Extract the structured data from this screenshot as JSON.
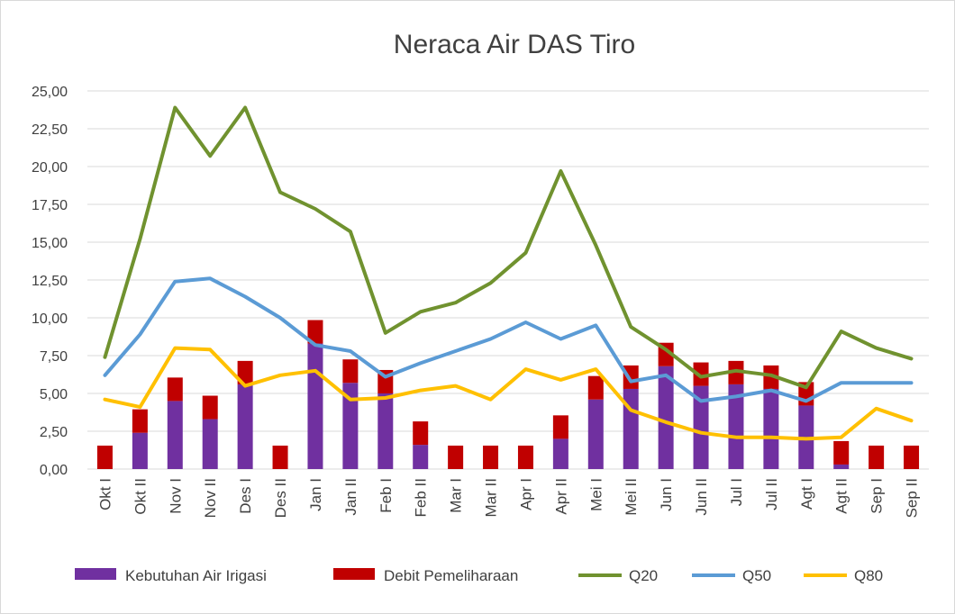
{
  "chart_data": {
    "type": "bar",
    "title": "Neraca Air DAS Tiro",
    "xlabel": "",
    "ylabel": "",
    "ylim": [
      0,
      25
    ],
    "yticks": [
      "0,00",
      "2,50",
      "5,00",
      "7,50",
      "10,00",
      "12,50",
      "15,00",
      "17,50",
      "20,00",
      "22,50",
      "25,00"
    ],
    "grid": true,
    "legend_position": "bottom",
    "categories": [
      "Okt I",
      "Okt II",
      "Nov I",
      "Nov II",
      "Des I",
      "Des II",
      "Jan I",
      "Jan II",
      "Feb I",
      "Feb II",
      "Mar I",
      "Mar II",
      "Apr I",
      "Apr II",
      "Mei I",
      "Mei II",
      "Jun I",
      "Jun II",
      "Jul I",
      "Jul II",
      "Agt I",
      "Agt II",
      "Sep I",
      "Sep II"
    ],
    "stacked_bars": [
      {
        "name": "Kebutuhan Air Irigasi",
        "color": "#7030a0",
        "values": [
          0,
          2.4,
          4.5,
          3.3,
          5.6,
          0,
          8.3,
          5.7,
          5.0,
          1.6,
          0,
          0,
          0,
          2.0,
          4.6,
          5.3,
          6.8,
          5.5,
          5.6,
          5.3,
          4.2,
          0.3,
          0,
          0
        ]
      },
      {
        "name": "Debit Pemeliharaan",
        "color": "#c00000",
        "values": [
          1.55,
          1.55,
          1.55,
          1.55,
          1.55,
          1.55,
          1.55,
          1.55,
          1.55,
          1.55,
          1.55,
          1.55,
          1.55,
          1.55,
          1.55,
          1.55,
          1.55,
          1.55,
          1.55,
          1.55,
          1.55,
          1.55,
          1.55,
          1.55
        ]
      }
    ],
    "series": [
      {
        "name": "Q20",
        "type": "line",
        "color": "#70922f",
        "values": [
          7.4,
          15.2,
          23.9,
          20.7,
          23.9,
          18.3,
          17.2,
          15.7,
          9.0,
          10.4,
          11.0,
          12.3,
          14.3,
          19.7,
          14.8,
          9.4,
          7.9,
          6.1,
          6.5,
          6.2,
          5.4,
          9.1,
          8.0,
          7.3
        ]
      },
      {
        "name": "Q50",
        "type": "line",
        "color": "#5b9bd5",
        "values": [
          6.2,
          8.9,
          12.4,
          12.6,
          11.4,
          10.0,
          8.2,
          7.8,
          6.1,
          7.0,
          7.8,
          8.6,
          9.7,
          8.6,
          9.5,
          5.8,
          6.2,
          4.5,
          4.8,
          5.2,
          4.5,
          5.7,
          5.7,
          5.7
        ]
      },
      {
        "name": "Q80",
        "type": "line",
        "color": "#ffc000",
        "values": [
          4.6,
          4.1,
          8.0,
          7.9,
          5.5,
          6.2,
          6.5,
          4.6,
          4.7,
          5.2,
          5.5,
          4.6,
          6.6,
          5.9,
          6.6,
          3.9,
          3.1,
          2.4,
          2.1,
          2.1,
          2.0,
          2.1,
          4.0,
          3.2
        ]
      }
    ],
    "legend": [
      "Kebutuhan Air Irigasi",
      "Debit Pemeliharaan",
      "Q20",
      "Q50",
      "Q80"
    ]
  }
}
